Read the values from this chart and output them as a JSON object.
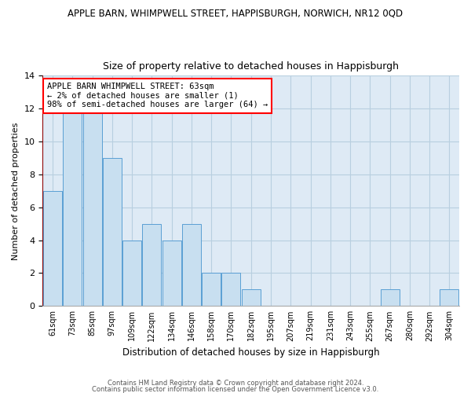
{
  "title": "APPLE BARN, WHIMPWELL STREET, HAPPISBURGH, NORWICH, NR12 0QD",
  "subtitle": "Size of property relative to detached houses in Happisburgh",
  "xlabel": "Distribution of detached houses by size in Happisburgh",
  "ylabel": "Number of detached properties",
  "bar_color": "#c8dff0",
  "bar_edge_color": "#5a9fd4",
  "background_color": "#deeaf5",
  "grid_color": "#b8cfe0",
  "bin_labels": [
    "61sqm",
    "73sqm",
    "85sqm",
    "97sqm",
    "109sqm",
    "122sqm",
    "134sqm",
    "146sqm",
    "158sqm",
    "170sqm",
    "182sqm",
    "195sqm",
    "207sqm",
    "219sqm",
    "231sqm",
    "243sqm",
    "255sqm",
    "267sqm",
    "280sqm",
    "292sqm",
    "304sqm"
  ],
  "bar_heights": [
    7,
    12,
    12,
    9,
    4,
    5,
    4,
    5,
    2,
    2,
    1,
    0,
    0,
    0,
    0,
    0,
    0,
    1,
    0,
    0,
    1
  ],
  "ylim": [
    0,
    14
  ],
  "yticks": [
    0,
    2,
    4,
    6,
    8,
    10,
    12,
    14
  ],
  "annotation_line1": "APPLE BARN WHIMPWELL STREET: 63sqm",
  "annotation_line2": "← 2% of detached houses are smaller (1)",
  "annotation_line3": "98% of semi-detached houses are larger (64) →",
  "red_line_x": -0.5,
  "footer_line1": "Contains HM Land Registry data © Crown copyright and database right 2024.",
  "footer_line2": "Contains public sector information licensed under the Open Government Licence v3.0."
}
